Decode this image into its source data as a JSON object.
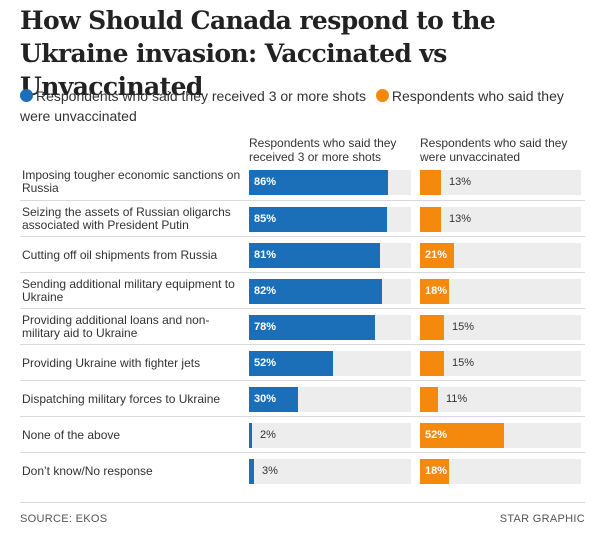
{
  "title": "How Should Canada respond to the Ukraine invasion: Vaccinated vs Unvaccinated",
  "legend": [
    {
      "label": "Respondents who said they received 3 or more shots",
      "color": "#1a6fb8"
    },
    {
      "label": "Respondents who said they were unvaccinated",
      "color": "#f5890e"
    }
  ],
  "column_headers": [
    "Respondents who said they received 3 or more shots",
    "Respondents who said they were unvaccinated"
  ],
  "footer": {
    "source": "SOURCE: EKOS",
    "credit": "STAR GRAPHIC"
  },
  "chart_data": {
    "type": "bar",
    "orientation": "horizontal",
    "categories": [
      "Imposing tougher economic sanctions on Russia",
      "Seizing the assets of Russian oligarchs associated with President Putin",
      "Cutting off oil shipments from Russia",
      "Sending additional military equipment to Ukraine",
      "Providing additional loans and non-military aid to Ukraine",
      "Providing Ukraine with fighter jets",
      "Dispatching military forces to Ukraine",
      "None of the above",
      "Don’t know/No response"
    ],
    "series": [
      {
        "name": "Respondents who said they received 3 or more shots",
        "color": "#1a6fb8",
        "values": [
          86,
          85,
          81,
          82,
          78,
          52,
          30,
          2,
          3
        ]
      },
      {
        "name": "Respondents who said they were unvaccinated",
        "color": "#f5890e",
        "values": [
          13,
          13,
          21,
          18,
          15,
          15,
          11,
          52,
          18
        ]
      }
    ],
    "value_suffix": "%",
    "xlim": [
      0,
      100
    ],
    "title": "How Should Canada respond to the Ukraine invasion: Vaccinated vs Unvaccinated",
    "xlabel": "",
    "ylabel": "",
    "grid": false,
    "legend_position": "top"
  }
}
